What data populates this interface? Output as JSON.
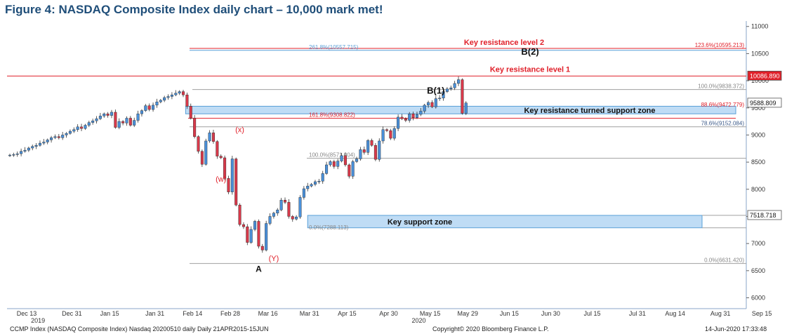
{
  "title": "Figure 4: NASDAQ Composite Index daily chart – 10,000 mark met!",
  "footer": {
    "left": "CCMP Index (NASDAQ Composite Index) Nasdaq 20200510 daily  Daily 21APR2015-15JUN",
    "center": "Copyright© 2020 Bloomberg Finance L.P.",
    "right": "14-Jun-2020 17:33:48"
  },
  "colors": {
    "up": "#4a90d9",
    "down": "#d8394a",
    "red_text": "#e0202a",
    "zone_fill": "#bfdcf5",
    "zone_border": "#5aa0d8",
    "grey_line": "#a0a0a0",
    "title": "#1f4e79"
  },
  "chart_data": {
    "type": "candlestick",
    "title": "Figure 4: NASDAQ Composite Index daily chart – 10,000 mark met!",
    "y_axis": {
      "min": 5800,
      "max": 11100,
      "ticks": [
        6000,
        6500,
        7000,
        7500,
        8000,
        8500,
        9000,
        9500,
        10000,
        10500,
        11000
      ],
      "position": "right"
    },
    "x_axis": {
      "ticks": [
        {
          "label": "Dec 13",
          "i": 0
        },
        {
          "label": "Dec 31",
          "i": 12
        },
        {
          "label": "Jan 15",
          "i": 22
        },
        {
          "label": "Jan 31",
          "i": 34
        },
        {
          "label": "Feb 14",
          "i": 44
        },
        {
          "label": "Feb 28",
          "i": 54
        },
        {
          "label": "Mar 16",
          "i": 64
        },
        {
          "label": "Mar 31",
          "i": 75
        },
        {
          "label": "Apr 15",
          "i": 85
        },
        {
          "label": "Apr 30",
          "i": 96
        },
        {
          "label": "May 15",
          "i": 107
        },
        {
          "label": "May 29",
          "i": 117
        },
        {
          "label": "Jun 15",
          "i": 128
        },
        {
          "label": "Jun 30",
          "i": 139
        },
        {
          "label": "Jul 15",
          "i": 150
        },
        {
          "label": "Jul 31",
          "i": 162
        },
        {
          "label": "Aug 14",
          "i": 172
        },
        {
          "label": "Aug 31",
          "i": 184
        },
        {
          "label": "Sep 15",
          "i": 195
        }
      ],
      "year_labels": [
        {
          "label": "2019",
          "i": 3
        },
        {
          "label": "2020",
          "i": 104
        }
      ]
    },
    "closes": [
      8630,
      8640,
      8655,
      8700,
      8720,
      8760,
      8790,
      8810,
      8850,
      8870,
      8910,
      8950,
      8970,
      8950,
      9000,
      9030,
      9070,
      9100,
      9150,
      9120,
      9180,
      9230,
      9260,
      9300,
      9350,
      9390,
      9360,
      9420,
      9140,
      9250,
      9220,
      9310,
      9180,
      9270,
      9390,
      9450,
      9540,
      9470,
      9550,
      9610,
      9640,
      9690,
      9710,
      9740,
      9770,
      9800,
      9740,
      9530,
      9310,
      8970,
      8700,
      8460,
      8890,
      9040,
      8880,
      8610,
      8580,
      8200,
      7950,
      8560,
      7710,
      7350,
      7310,
      7020,
      7260,
      7410,
      6950,
      6880,
      7370,
      7500,
      7560,
      7620,
      7800,
      7760,
      7500,
      7450,
      7490,
      7850,
      8010,
      8060,
      8090,
      8140,
      8150,
      8290,
      8450,
      8510,
      8420,
      8520,
      8620,
      8450,
      8240,
      8510,
      8560,
      8730,
      8680,
      8900,
      8810,
      8550,
      8890,
      9100,
      9080,
      8940,
      9120,
      9330,
      9300,
      9270,
      9390,
      9320,
      9380,
      9440,
      9550,
      9600,
      9520,
      9670,
      9680,
      9800,
      9850,
      9870,
      9950,
      10020,
      9400,
      9590
    ],
    "annotations": {
      "key_resistance_level_2": {
        "value": 10595.213,
        "text": "Key resistance level 2"
      },
      "key_resistance_level_1": {
        "value": 10086.89,
        "text": "Key resistance level 1"
      },
      "key_resistance_turned_support_zone": {
        "low": 9390,
        "high": 9530,
        "text": "Key resistance turned support zone"
      },
      "key_support_zone": {
        "low": 7290,
        "high": 7518.718,
        "text": "Key support zone"
      },
      "fib_lines": [
        {
          "value": 10557.715,
          "label": "261.8%(10557.715)"
        },
        {
          "value": 10595.213,
          "label": "123.6%(10595.213)"
        },
        {
          "value": 9838.372,
          "label": "100.0%(9838.372)"
        },
        {
          "value": 9472.779,
          "label": "88.6%(9472.779)"
        },
        {
          "value": 9308.822,
          "label": "161.8%(9308.822)"
        },
        {
          "value": 9152.084,
          "label": "78.6%(9152.084)"
        },
        {
          "value": 8571.004,
          "label": "100.0%(8571.004)"
        },
        {
          "value": 7288.113,
          "label": "0.0%(7288.113)"
        },
        {
          "value": 6631.42,
          "label": "0.0%(6631.420)"
        }
      ],
      "price_tags": [
        {
          "value": 10086.89,
          "text": "10086.890"
        },
        {
          "value": 9588.809,
          "text": "9588.809"
        },
        {
          "value": 7518.718,
          "text": "7518.718"
        }
      ],
      "wave_labels": [
        {
          "text": "(w)",
          "i": 56,
          "value": 8140
        },
        {
          "text": "(x)",
          "i": 61,
          "value": 9050
        },
        {
          "text": "(Y)",
          "i": 70,
          "value": 6680
        },
        {
          "text": "A",
          "i": 66,
          "value": 6480
        },
        {
          "text": "B(1)",
          "i": 113,
          "value": 9760
        },
        {
          "text": "B(2)",
          "i": 138,
          "value": 10480
        }
      ]
    }
  }
}
